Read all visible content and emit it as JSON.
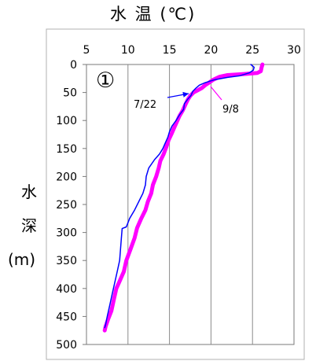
{
  "chart_data": {
    "type": "line",
    "title": "水 温 (℃)",
    "panel_label": "①",
    "ylabel": [
      "水",
      "深",
      "(m)"
    ],
    "xlim": [
      5,
      30
    ],
    "ylim": [
      0,
      500
    ],
    "x_ticks": [
      5,
      10,
      15,
      20,
      25,
      30
    ],
    "y_ticks": [
      0,
      50,
      100,
      150,
      200,
      250,
      300,
      350,
      400,
      450,
      500
    ],
    "y_inverted": true,
    "grid": "vertical",
    "annotations": [
      {
        "text": "7/22",
        "color": "#0000ff"
      },
      {
        "text": "9/8",
        "color": "#ff00ff"
      }
    ],
    "series": [
      {
        "name": "7/22",
        "color": "#0000ff",
        "points": [
          [
            24.8,
            0
          ],
          [
            25.2,
            5
          ],
          [
            25.1,
            10
          ],
          [
            24.6,
            15
          ],
          [
            23.5,
            20
          ],
          [
            22.0,
            23
          ],
          [
            20.5,
            27
          ],
          [
            19.8,
            30
          ],
          [
            19.2,
            33
          ],
          [
            18.6,
            37
          ],
          [
            18.2,
            42
          ],
          [
            17.8,
            48
          ],
          [
            17.6,
            55
          ],
          [
            17.2,
            62
          ],
          [
            16.8,
            70
          ],
          [
            16.7,
            80
          ],
          [
            16.2,
            90
          ],
          [
            15.8,
            100
          ],
          [
            15.3,
            110
          ],
          [
            15.0,
            120
          ],
          [
            14.8,
            130
          ],
          [
            14.5,
            140
          ],
          [
            14.2,
            150
          ],
          [
            13.8,
            160
          ],
          [
            13.2,
            170
          ],
          [
            12.5,
            185
          ],
          [
            12.2,
            200
          ],
          [
            12.1,
            215
          ],
          [
            11.8,
            230
          ],
          [
            11.3,
            245
          ],
          [
            10.8,
            260
          ],
          [
            10.2,
            275
          ],
          [
            9.8,
            290
          ],
          [
            9.3,
            293
          ],
          [
            9.2,
            310
          ],
          [
            9.1,
            330
          ],
          [
            9.0,
            350
          ],
          [
            8.7,
            370
          ],
          [
            8.4,
            390
          ],
          [
            8.1,
            410
          ],
          [
            7.8,
            430
          ],
          [
            7.5,
            450
          ],
          [
            7.3,
            465
          ],
          [
            7.2,
            470
          ]
        ]
      },
      {
        "name": "9/8",
        "color": "#ff00ff",
        "points": [
          [
            26.2,
            0
          ],
          [
            26.1,
            5
          ],
          [
            26.0,
            12
          ],
          [
            25.6,
            15
          ],
          [
            24.0,
            17
          ],
          [
            22.0,
            19
          ],
          [
            21.0,
            22
          ],
          [
            20.3,
            27
          ],
          [
            19.8,
            32
          ],
          [
            19.3,
            37
          ],
          [
            18.9,
            42
          ],
          [
            18.4,
            46
          ],
          [
            17.9,
            50
          ],
          [
            17.5,
            56
          ],
          [
            17.2,
            63
          ],
          [
            16.9,
            72
          ],
          [
            16.6,
            82
          ],
          [
            16.2,
            92
          ],
          [
            15.9,
            102
          ],
          [
            15.6,
            112
          ],
          [
            15.3,
            122
          ],
          [
            14.9,
            135
          ],
          [
            14.6,
            148
          ],
          [
            14.3,
            160
          ],
          [
            13.9,
            172
          ],
          [
            13.7,
            185
          ],
          [
            13.4,
            200
          ],
          [
            13.0,
            215
          ],
          [
            12.8,
            230
          ],
          [
            12.4,
            245
          ],
          [
            12.1,
            260
          ],
          [
            11.6,
            275
          ],
          [
            11.1,
            292
          ],
          [
            10.8,
            310
          ],
          [
            10.3,
            330
          ],
          [
            9.8,
            350
          ],
          [
            9.5,
            370
          ],
          [
            8.9,
            390
          ],
          [
            8.6,
            400
          ],
          [
            8.3,
            420
          ],
          [
            8.0,
            440
          ],
          [
            7.6,
            455
          ],
          [
            7.3,
            468
          ],
          [
            7.2,
            475
          ]
        ]
      }
    ]
  }
}
